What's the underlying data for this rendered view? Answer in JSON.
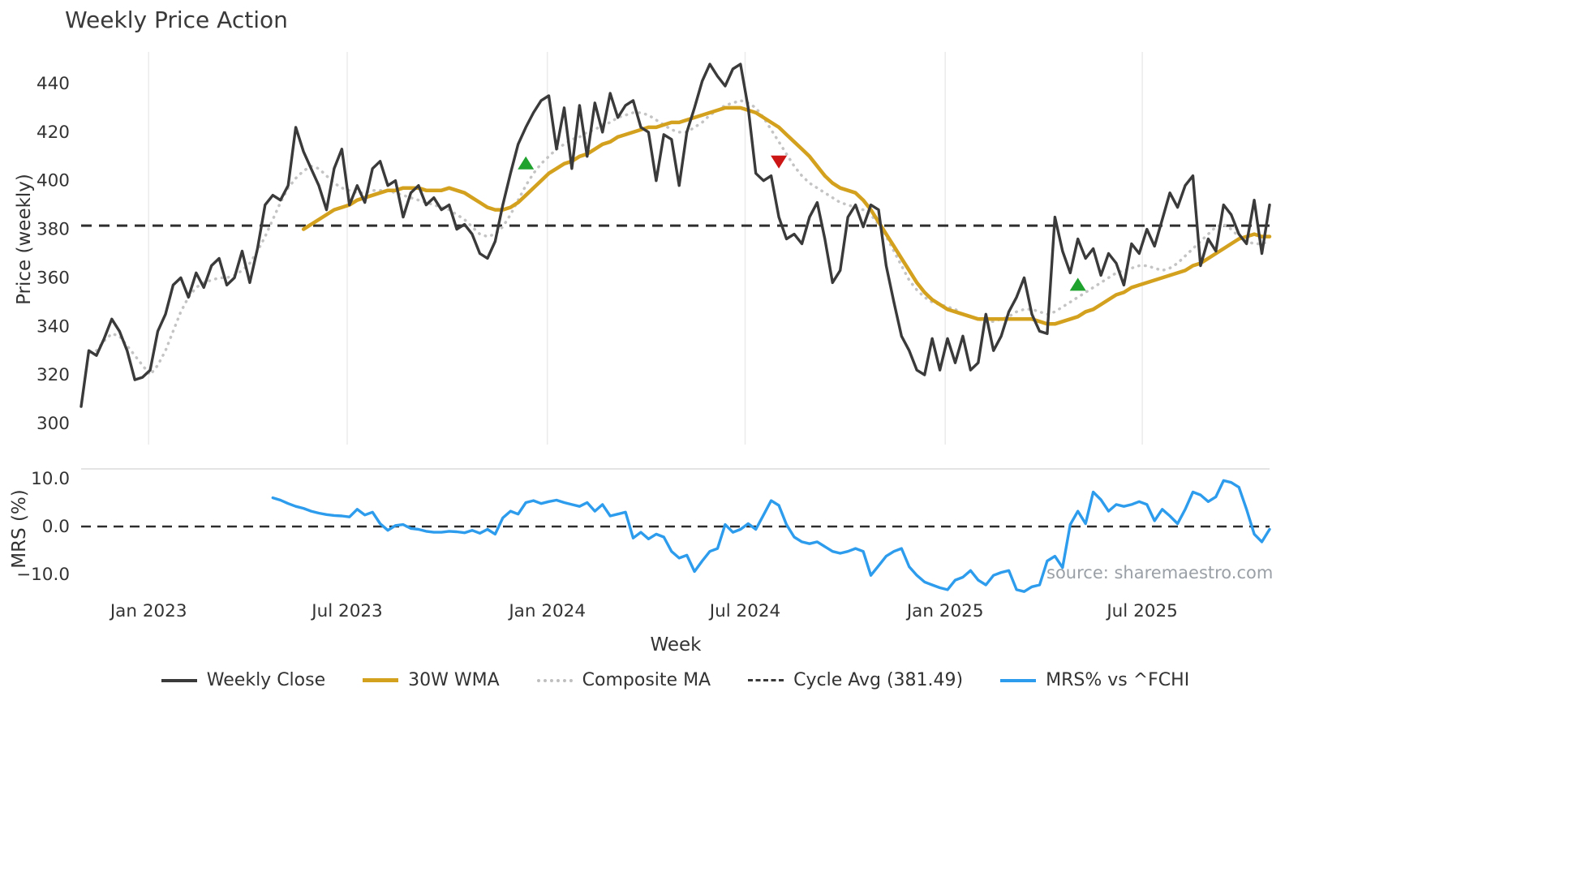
{
  "title": "Weekly Price Action",
  "source_text": "source: sharemaestro.com",
  "axis": {
    "price_label": "Price (weekly)",
    "mrs_label": "MRS (%)",
    "x_label": "Week"
  },
  "colors": {
    "close": "#3a3a3a",
    "wma": "#d4a11e",
    "composite": "#c4c4c4",
    "cycle": "#2e2e2e",
    "mrs": "#2d9cec",
    "grid": "#ebebeb",
    "panel_spine": "#dcdcdc",
    "buy": "#1fa22e",
    "sell": "#cc1515",
    "tick": "#333333",
    "source_text": "#9aa0a6"
  },
  "legend": {
    "items": [
      {
        "label": "Weekly Close"
      },
      {
        "label": "30W WMA"
      },
      {
        "label": "Composite MA"
      },
      {
        "label": "Cycle Avg (381.49)"
      },
      {
        "label": "MRS% vs ^FCHI"
      }
    ]
  },
  "chart_data": [
    {
      "type": "line",
      "panel": "price",
      "title": "Weekly Price Action",
      "xlabel": "Week",
      "ylabel": "Price (weekly)",
      "ylim": [
        297,
        452
      ],
      "grid": "vertical-only",
      "y_ticks": [
        300,
        320,
        340,
        360,
        380,
        400,
        420,
        440
      ],
      "x_ticks": [
        {
          "label": "Jan 2023",
          "index": 8.8
        },
        {
          "label": "Jul 2023",
          "index": 34.7
        },
        {
          "label": "Jan 2024",
          "index": 60.8
        },
        {
          "label": "Jul 2024",
          "index": 86.6
        },
        {
          "label": "Jan 2025",
          "index": 112.7
        },
        {
          "label": "Jul 2025",
          "index": 138.4
        }
      ],
      "x_unit": "week index, weekly spacing, index 0 is approx Nov 2022",
      "cycle_avg": 381.49,
      "series": {
        "weekly_close": {
          "name": "Weekly Close",
          "start_index": 0,
          "values": [
            307,
            330,
            328,
            335,
            343,
            338,
            330,
            318,
            319,
            322,
            338,
            345,
            357,
            360,
            352,
            362,
            356,
            365,
            368,
            357,
            360,
            371,
            358,
            372,
            390,
            394,
            392,
            398,
            422,
            412,
            405,
            398,
            388,
            405,
            413,
            390,
            398,
            391,
            405,
            408,
            398,
            400,
            385,
            395,
            398,
            390,
            393,
            388,
            390,
            380,
            382,
            378,
            370,
            368,
            375,
            390,
            403,
            415,
            422,
            428,
            433,
            435,
            413,
            430,
            405,
            431,
            410,
            432,
            420,
            436,
            426,
            431,
            433,
            422,
            420,
            400,
            419,
            417,
            398,
            420,
            430,
            441,
            448,
            443,
            439,
            446,
            448,
            430,
            403,
            400,
            402,
            385,
            376,
            378,
            374,
            385,
            391,
            376,
            358,
            363,
            385,
            390,
            381,
            390,
            388,
            365,
            350,
            336,
            330,
            322,
            320,
            335,
            322,
            335,
            325,
            336,
            322,
            325,
            345,
            330,
            336,
            346,
            352,
            360,
            345,
            338,
            337,
            385,
            371,
            362,
            376,
            368,
            372,
            361,
            370,
            366,
            357,
            374,
            370,
            380,
            373,
            384,
            395,
            389,
            398,
            402,
            365,
            376,
            371,
            390,
            386,
            378,
            374,
            392,
            370,
            390
          ]
        },
        "wma_30w": {
          "name": "30W WMA",
          "start_index": 29,
          "values": [
            380,
            382,
            384,
            386,
            388,
            389,
            390,
            392,
            393,
            394,
            395,
            396,
            396,
            397,
            397,
            397,
            396,
            396,
            396,
            397,
            396,
            395,
            393,
            391,
            389,
            388,
            388,
            389,
            391,
            394,
            397,
            400,
            403,
            405,
            407,
            408,
            410,
            411,
            413,
            415,
            416,
            418,
            419,
            420,
            421,
            422,
            422,
            423,
            424,
            424,
            425,
            426,
            427,
            428,
            429,
            430,
            430,
            430,
            429,
            428,
            426,
            424,
            422,
            419,
            416,
            413,
            410,
            406,
            402,
            399,
            397,
            396,
            395,
            392,
            388,
            383,
            378,
            373,
            368,
            363,
            358,
            354,
            351,
            349,
            347,
            346,
            345,
            344,
            343,
            343,
            343,
            343,
            343,
            343,
            343,
            343,
            342,
            341,
            341,
            342,
            343,
            344,
            346,
            347,
            349,
            351,
            353,
            354,
            356,
            357,
            358,
            359,
            360,
            361,
            362,
            363,
            365,
            366,
            368,
            370,
            372,
            374,
            376,
            377,
            378,
            377,
            377
          ]
        },
        "composite_ma": {
          "name": "Composite MA",
          "start_index": 2,
          "values": [
            330,
            334,
            337,
            336,
            332,
            328,
            324,
            320,
            324,
            330,
            338,
            346,
            352,
            356,
            358,
            359,
            360,
            360,
            361,
            363,
            366,
            371,
            377,
            384,
            391,
            397,
            401,
            404,
            406,
            405,
            402,
            399,
            397,
            396,
            395,
            395,
            396,
            396,
            396,
            395,
            394,
            393,
            392,
            391,
            390,
            389,
            388,
            386,
            384,
            381,
            378,
            377,
            378,
            381,
            386,
            392,
            398,
            403,
            407,
            410,
            413,
            415,
            417,
            418,
            420,
            421,
            423,
            424,
            426,
            427,
            428,
            428,
            427,
            425,
            423,
            421,
            420,
            420,
            422,
            424,
            427,
            429,
            431,
            432,
            433,
            432,
            430,
            426,
            421,
            416,
            411,
            406,
            402,
            399,
            397,
            395,
            393,
            391,
            390,
            389,
            388,
            386,
            382,
            377,
            371,
            365,
            359,
            355,
            352,
            350,
            349,
            348,
            347,
            345,
            344,
            343,
            342,
            342,
            343,
            344,
            346,
            347,
            347,
            346,
            345,
            346,
            348,
            350,
            352,
            354,
            356,
            358,
            360,
            362,
            363,
            364,
            365,
            365,
            364,
            363,
            364,
            366,
            369,
            372,
            375,
            378,
            381,
            382,
            380,
            377,
            375,
            374,
            374,
            375
          ]
        }
      },
      "signals": {
        "buy": [
          {
            "index": 58,
            "value": 407
          },
          {
            "index": 130,
            "value": 357
          }
        ],
        "sell": [
          {
            "index": 91,
            "value": 408
          }
        ]
      }
    },
    {
      "type": "line",
      "panel": "mrs",
      "ylabel": "MRS (%)",
      "ylim": [
        -15,
        11
      ],
      "zero_line": 0,
      "y_ticks": [
        {
          "value": -10,
          "label": "−10.0"
        },
        {
          "value": 0,
          "label": "0.0"
        },
        {
          "value": 10,
          "label": "10.0"
        }
      ],
      "series": {
        "mrs": {
          "name": "MRS% vs ^FCHI",
          "start_index": 25,
          "values": [
            6.0,
            5.5,
            4.8,
            4.2,
            3.8,
            3.2,
            2.8,
            2.5,
            2.3,
            2.2,
            2.0,
            3.6,
            2.4,
            3.0,
            0.6,
            -0.8,
            0.2,
            0.4,
            -0.4,
            -0.6,
            -1.0,
            -1.2,
            -1.2,
            -1.0,
            -1.1,
            -1.3,
            -0.8,
            -1.4,
            -0.6,
            -1.6,
            1.8,
            3.2,
            2.6,
            5.0,
            5.4,
            4.8,
            5.2,
            5.5,
            5.0,
            4.6,
            4.2,
            5.0,
            3.2,
            4.6,
            2.2,
            2.6,
            3.0,
            -2.4,
            -1.2,
            -2.6,
            -1.6,
            -2.2,
            -5.2,
            -6.6,
            -6.0,
            -9.4,
            -7.2,
            -5.2,
            -4.6,
            0.4,
            -1.2,
            -0.6,
            0.6,
            -0.6,
            2.4,
            5.4,
            4.4,
            0.4,
            -2.2,
            -3.2,
            -3.6,
            -3.2,
            -4.2,
            -5.2,
            -5.6,
            -5.2,
            -4.6,
            -5.2,
            -10.2,
            -8.2,
            -6.2,
            -5.2,
            -4.6,
            -8.4,
            -10.2,
            -11.6,
            -12.2,
            -12.8,
            -13.2,
            -11.2,
            -10.6,
            -9.2,
            -11.2,
            -12.2,
            -10.2,
            -9.6,
            -9.2,
            -13.2,
            -13.6,
            -12.6,
            -12.2,
            -7.2,
            -6.2,
            -8.6,
            0.4,
            3.2,
            0.6,
            7.2,
            5.6,
            3.2,
            4.6,
            4.2,
            4.6,
            5.2,
            4.6,
            1.2,
            3.6,
            2.2,
            0.6,
            3.6,
            7.2,
            6.6,
            5.2,
            6.2,
            9.6,
            9.2,
            8.2,
            3.6,
            -1.6,
            -3.2,
            -0.6
          ]
        }
      }
    }
  ]
}
